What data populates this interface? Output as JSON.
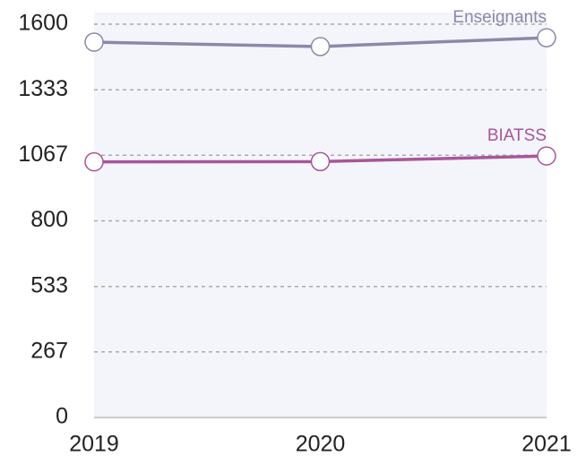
{
  "chart_data": {
    "type": "line",
    "categories": [
      "2019",
      "2020",
      "2021"
    ],
    "series": [
      {
        "name": "Enseignants",
        "color": "#8c87aa",
        "values": [
          1527,
          1509,
          1545
        ]
      },
      {
        "name": "BIATSS",
        "color": "#a8559c",
        "values": [
          1040,
          1041,
          1064
        ]
      }
    ],
    "ylim": [
      0,
      1600
    ],
    "yticks": [
      0,
      267,
      533,
      800,
      1067,
      1333,
      1600
    ],
    "grid": true
  }
}
